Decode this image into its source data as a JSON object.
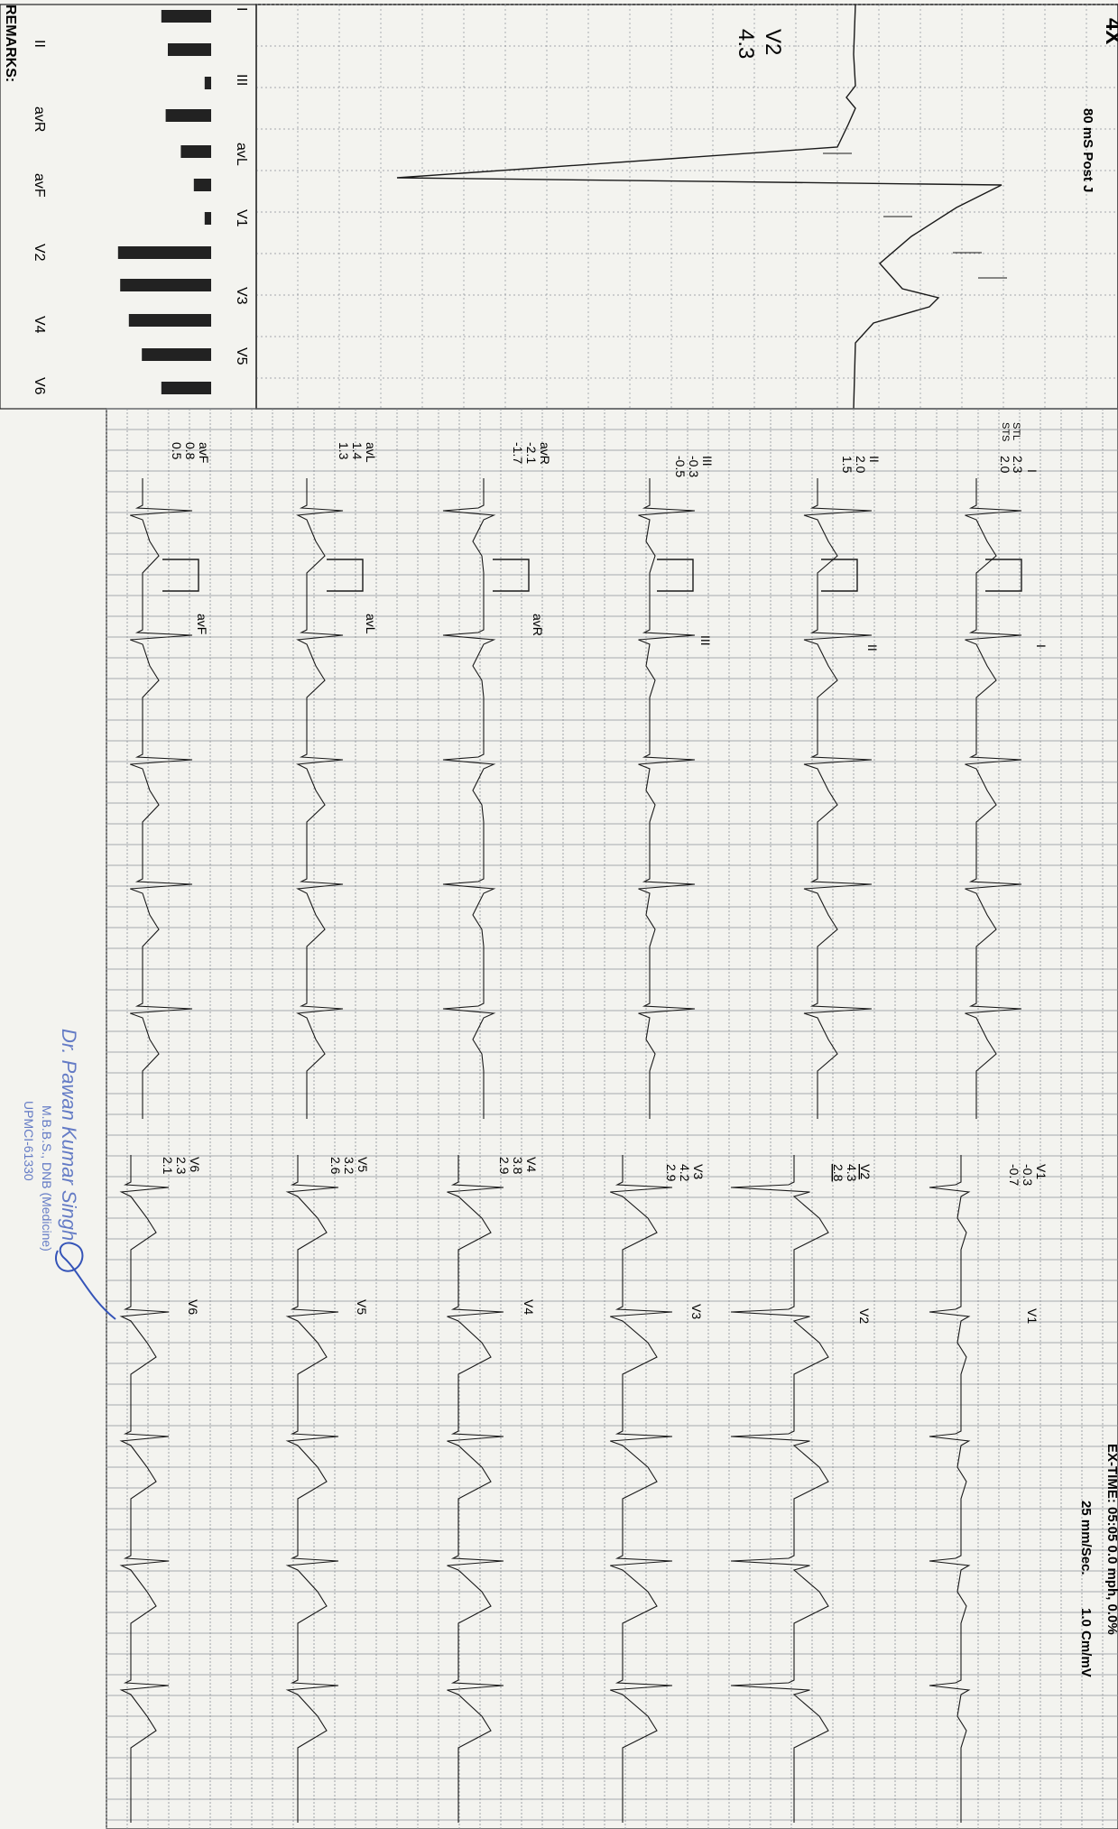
{
  "header": {
    "mag": "4X",
    "post_j": "80 mS Post J",
    "lead": "V2",
    "value": "4.3",
    "speed": "25 mm/Sec.",
    "gain": "1.0 Cm/mV",
    "cut_off": "EX-TIME: 05:05   0.0 mph,   0.0%"
  },
  "st_labels": {
    "stl": "STL",
    "sts": "STS"
  },
  "bar_chart": {
    "leads": [
      "I",
      "II",
      "III",
      "avR",
      "avL",
      "avF",
      "V1",
      "V2",
      "V3",
      "V4",
      "V5",
      "V6"
    ],
    "values": [
      2.3,
      2.0,
      -0.3,
      -2.1,
      1.4,
      0.8,
      -0.3,
      4.3,
      4.2,
      3.8,
      3.2,
      2.3
    ]
  },
  "remarks": "REMARKS:",
  "leads_left": [
    {
      "name": "I",
      "stl": "2.3",
      "sts": "2.0"
    },
    {
      "name": "II",
      "stl": "2.0",
      "sts": "1.5"
    },
    {
      "name": "III",
      "stl": "-0.3",
      "sts": "-0.5"
    },
    {
      "name": "avR",
      "stl": "-2.1",
      "sts": "-1.7"
    },
    {
      "name": "avL",
      "stl": "1.4",
      "sts": "1.3"
    },
    {
      "name": "avF",
      "stl": "0.8",
      "sts": "0.5"
    }
  ],
  "leads_right": [
    {
      "name": "V1",
      "stl": "-0.3",
      "sts": "-0.7"
    },
    {
      "name": "V2",
      "stl": "4.3",
      "sts": "2.8"
    },
    {
      "name": "V3",
      "stl": "4.2",
      "sts": "2.9"
    },
    {
      "name": "V4",
      "stl": "3.8",
      "sts": "2.9"
    },
    {
      "name": "V5",
      "stl": "3.2",
      "sts": "2.6"
    },
    {
      "name": "V6",
      "stl": "2.3",
      "sts": "2.1"
    }
  ],
  "stamp": {
    "name": "Dr. Pawan Kumar Singh",
    "degree": "M.B.B.S., DNB (Medicine)",
    "reg": "UPMCI-61330"
  },
  "colors": {
    "grid": "#8a8f96",
    "trace": "#1a1a1a",
    "stamp": "#3554b8"
  }
}
